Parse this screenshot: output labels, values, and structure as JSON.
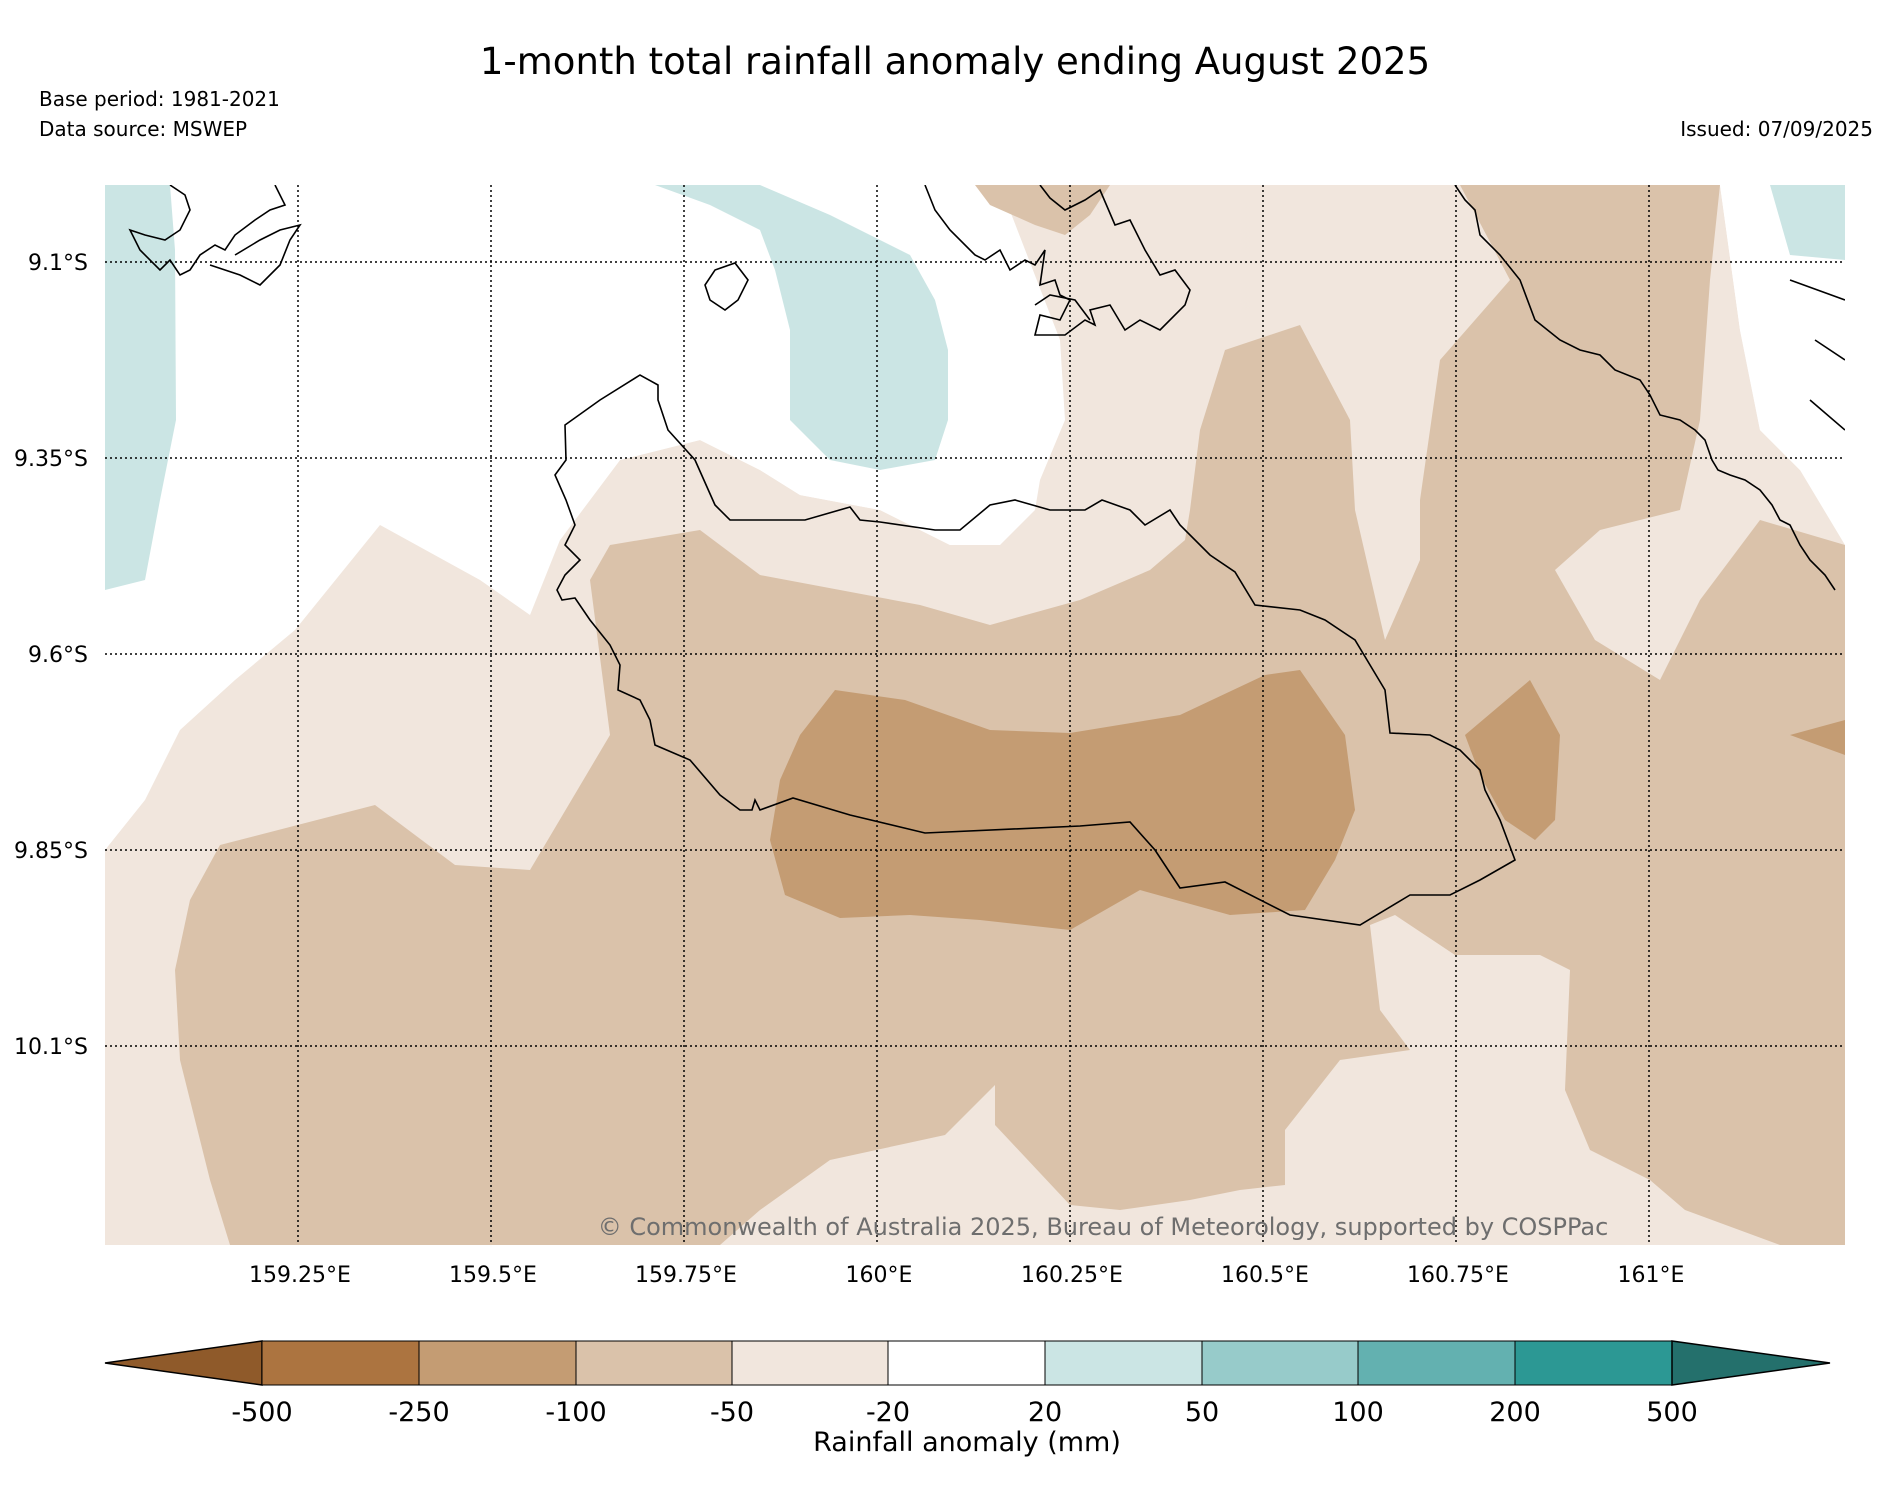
{
  "title": "1-month total rainfall anomaly ending August 2025",
  "meta": {
    "base_period": "Base period: 1981-2021",
    "data_source": "Data source: MSWEP",
    "issued": "Issued: 07/09/2025"
  },
  "map": {
    "lat_labels": [
      "9.1°S",
      "9.35°S",
      "9.6°S",
      "9.85°S",
      "10.1°S"
    ],
    "lon_labels": [
      "159.25°E",
      "159.5°E",
      "159.75°E",
      "160°E",
      "160.25°E",
      "160.5°E",
      "160.75°E",
      "161°E"
    ],
    "copyright": "© Commonwealth of Australia 2025, Bureau of Meteorology, supported by COSPPac",
    "colors": {
      "minus_100_to_minus_250": "#c49c73",
      "minus_50_to_minus_100": "#dac2aa",
      "minus_20_to_minus_50": "#f1e6dd",
      "near_normal": "#ffffff",
      "plus_20_to_plus_50": "#cbe5e4"
    }
  },
  "legend": {
    "label": "Rainfall anomaly (mm)",
    "ticks": [
      "-500",
      "-250",
      "-100",
      "-50",
      "-20",
      "20",
      "50",
      "100",
      "200",
      "500"
    ],
    "colors": [
      "#8f5a2a",
      "#ac7440",
      "#c49c73",
      "#dac2aa",
      "#f1e6dd",
      "#ffffff",
      "#cbe5e4",
      "#97cbca",
      "#63b1b0",
      "#2c9894",
      "#24706c"
    ]
  }
}
